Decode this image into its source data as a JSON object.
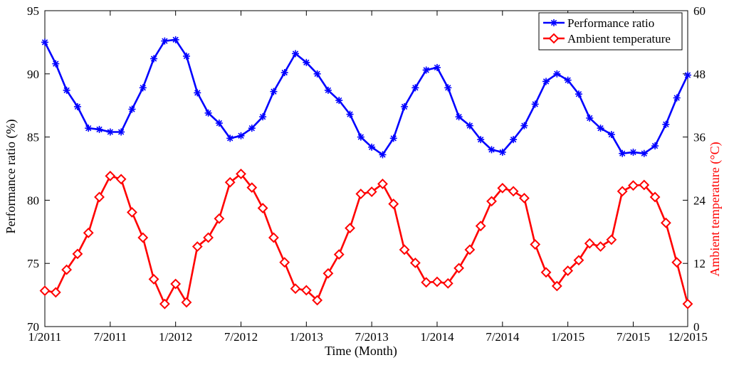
{
  "chart_data": {
    "type": "line",
    "xlabel": "Time (Month)",
    "ylabel_left": "Performance ratio (%)",
    "ylabel_right": "Ambient temperature (°C)",
    "x_tick_labels": [
      "1/2011",
      "7/2011",
      "1/2012",
      "7/2012",
      "1/2013",
      "7/2013",
      "1/2014",
      "7/2014",
      "1/2015",
      "7/2015",
      "12/2015"
    ],
    "x_tick_months": [
      0,
      6,
      12,
      18,
      24,
      30,
      36,
      42,
      48,
      54,
      59
    ],
    "ylim_left": [
      70,
      95
    ],
    "yticks_left": [
      70,
      75,
      80,
      85,
      90,
      95
    ],
    "ylim_right": [
      0,
      60
    ],
    "yticks_right": [
      0,
      12,
      24,
      36,
      48,
      60
    ],
    "grid": false,
    "legend_position": "top-right",
    "series": [
      {
        "name": "Performance ratio",
        "axis": "left",
        "color": "#0000ff",
        "marker": "asterisk",
        "values": [
          92.5,
          90.8,
          88.7,
          87.4,
          85.7,
          85.6,
          85.4,
          85.4,
          87.2,
          88.9,
          91.2,
          92.6,
          92.7,
          91.4,
          88.5,
          86.9,
          86.1,
          84.9,
          85.1,
          85.7,
          86.6,
          88.6,
          90.1,
          91.6,
          90.9,
          90.0,
          88.7,
          87.9,
          86.8,
          85.0,
          84.2,
          83.6,
          84.9,
          87.4,
          88.9,
          90.3,
          90.5,
          88.9,
          86.6,
          85.9,
          84.8,
          84.0,
          83.8,
          84.8,
          85.9,
          87.6,
          89.4,
          90.0,
          89.5,
          88.4,
          86.5,
          85.7,
          85.2,
          83.7,
          83.8,
          83.7,
          84.3,
          86.0,
          88.1,
          89.9
        ]
      },
      {
        "name": "Ambient temperature",
        "axis": "right",
        "color": "#ff0000",
        "marker": "diamond",
        "values": [
          6.8,
          6.5,
          10.8,
          13.8,
          17.8,
          24.6,
          28.6,
          28.0,
          21.7,
          16.9,
          9.0,
          4.3,
          8.1,
          4.6,
          15.2,
          16.9,
          20.5,
          27.4,
          29.0,
          26.4,
          22.5,
          16.9,
          12.2,
          7.2,
          6.9,
          5.0,
          10.1,
          13.7,
          18.7,
          25.2,
          25.6,
          27.1,
          23.3,
          14.6,
          12.1,
          8.4,
          8.5,
          8.2,
          11.1,
          14.6,
          19.1,
          23.8,
          26.3,
          25.7,
          24.4,
          15.6,
          10.3,
          7.7,
          10.6,
          12.6,
          15.8,
          15.2,
          16.5,
          25.7,
          26.8,
          26.9,
          24.6,
          19.7,
          12.2,
          4.3
        ]
      }
    ]
  }
}
